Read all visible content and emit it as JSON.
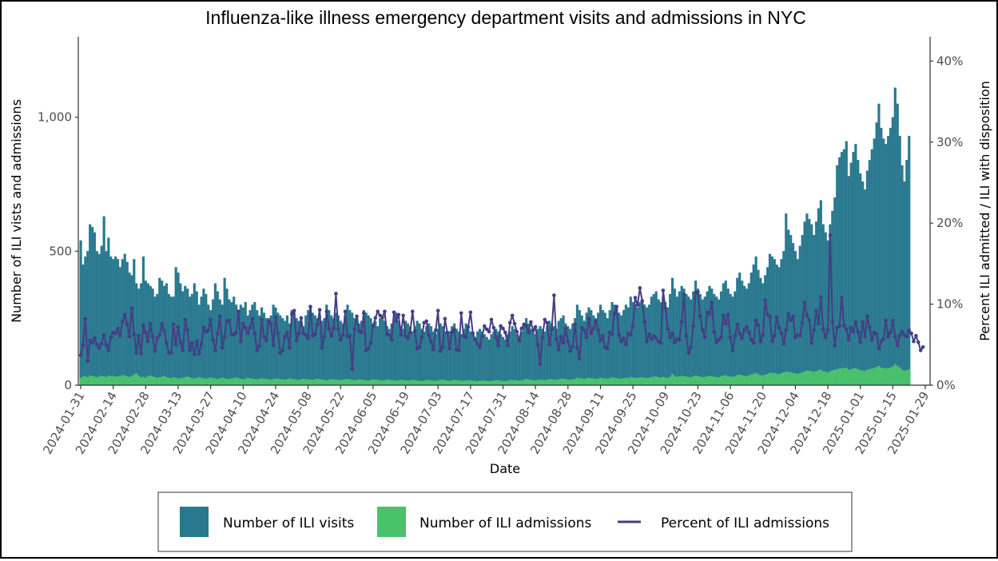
{
  "chart_data": {
    "type": "bar+line",
    "title": "Influenza-like illness emergency department visits and admissions in NYC",
    "xlabel": "Date",
    "ylabel": "Number of ILI vists and admissions",
    "ylabel_right": "Percent ILI admitted / ILI with disposition",
    "start_date": "2024-01-31",
    "end_date": "2025-01-29",
    "x_tick_labels": [
      "2024-01-31",
      "2024-02-14",
      "2024-02-28",
      "2024-03-13",
      "2024-03-27",
      "2024-04-10",
      "2024-04-24",
      "2024-05-08",
      "2024-05-22",
      "2024-06-05",
      "2024-06-19",
      "2024-07-03",
      "2024-07-17",
      "2024-07-31",
      "2024-08-14",
      "2024-08-28",
      "2024-09-11",
      "2024-09-25",
      "2024-10-09",
      "2024-10-23",
      "2024-11-06",
      "2024-11-20",
      "2024-12-04",
      "2024-12-18",
      "2025-01-01",
      "2025-01-15",
      "2025-01-29"
    ],
    "y_ticks": [
      0,
      500,
      1000
    ],
    "y_tick_labels": [
      "0",
      "500",
      "1,000"
    ],
    "ylim": [
      0,
      1300
    ],
    "y2_ticks": [
      0,
      10,
      20,
      30,
      40
    ],
    "y2_tick_labels": [
      "0%",
      "10%",
      "20%",
      "30%",
      "40%"
    ],
    "y2lim": [
      0,
      43
    ],
    "grid": false,
    "legend_position": "bottom",
    "series": [
      {
        "name": "Number of ILI visits",
        "kind": "bar",
        "axis": "left",
        "color": "#2a788e",
        "values": [
          540,
          450,
          480,
          500,
          600,
          590,
          570,
          500,
          490,
          520,
          630,
          500,
          550,
          480,
          470,
          480,
          470,
          440,
          470,
          490,
          460,
          420,
          410,
          470,
          380,
          360,
          380,
          480,
          390,
          380,
          370,
          360,
          330,
          340,
          400,
          390,
          370,
          380,
          340,
          330,
          330,
          440,
          420,
          380,
          350,
          370,
          360,
          330,
          340,
          380,
          350,
          300,
          330,
          360,
          340,
          300,
          280,
          320,
          380,
          350,
          320,
          300,
          400,
          360,
          320,
          310,
          330,
          300,
          270,
          300,
          290,
          310,
          260,
          280,
          300,
          310,
          280,
          260,
          290,
          270,
          250,
          250,
          260,
          300,
          290,
          270,
          260,
          250,
          240,
          260,
          230,
          280,
          270,
          250,
          240,
          230,
          220,
          260,
          280,
          290,
          270,
          260,
          250,
          260,
          240,
          250,
          300,
          280,
          260,
          250,
          270,
          260,
          240,
          230,
          260,
          300,
          280,
          270,
          250,
          260,
          230,
          240,
          280,
          270,
          260,
          250,
          230,
          240,
          220,
          250,
          260,
          240,
          220,
          210,
          230,
          250,
          270,
          240,
          220,
          210,
          240,
          230,
          220,
          200,
          220,
          240,
          230,
          210,
          200,
          220,
          230,
          220,
          200,
          190,
          210,
          230,
          220,
          200,
          190,
          200,
          220,
          230,
          210,
          200,
          190,
          210,
          230,
          210,
          200,
          190,
          180,
          200,
          210,
          200,
          190,
          180,
          170,
          190,
          200,
          210,
          200,
          190,
          180,
          170,
          190,
          200,
          220,
          210,
          190,
          180,
          200,
          230,
          250,
          230,
          210,
          200,
          190,
          210,
          220,
          210,
          200,
          220,
          240,
          230,
          220,
          210,
          240,
          250,
          260,
          230,
          220,
          210,
          230,
          250,
          300,
          280,
          260,
          240,
          270,
          290,
          280,
          260,
          250,
          270,
          300,
          280,
          270,
          250,
          280,
          310,
          300,
          290,
          270,
          260,
          280,
          300,
          290,
          330,
          310,
          300,
          290,
          310,
          320,
          300,
          290,
          300,
          330,
          340,
          350,
          320,
          310,
          330,
          310,
          290,
          340,
          400,
          360,
          330,
          350,
          370,
          360,
          340,
          330,
          320,
          350,
          390,
          360,
          340,
          320,
          330,
          350,
          370,
          360,
          340,
          330,
          320,
          350,
          380,
          390,
          360,
          340,
          330,
          350,
          400,
          420,
          390,
          370,
          360,
          380,
          420,
          450,
          480,
          430,
          400,
          380,
          410,
          440,
          490,
          480,
          470,
          450,
          440,
          470,
          500,
          640,
          580,
          560,
          530,
          500,
          470,
          520,
          560,
          610,
          640,
          620,
          600,
          560,
          610,
          660,
          690,
          600,
          570,
          540,
          600,
          650,
          700,
          820,
          850,
          870,
          880,
          910,
          780,
          830,
          870,
          900,
          840,
          790,
          760,
          730,
          800,
          840,
          880,
          920,
          980,
          1050,
          960,
          920,
          900,
          930,
          960,
          1000,
          1110,
          1050,
          930,
          820,
          760,
          840,
          930
        ]
      },
      {
        "name": "Number of ILI admissions",
        "kind": "bar",
        "axis": "left",
        "color": "#4ac16d",
        "values": [
          28,
          32,
          34,
          30,
          36,
          35,
          32,
          30,
          34,
          35,
          33,
          31,
          36,
          34,
          35,
          32,
          33,
          34,
          38,
          36,
          33,
          31,
          35,
          40,
          45,
          36,
          30,
          32,
          28,
          35,
          36,
          33,
          30,
          28,
          30,
          32,
          34,
          30,
          28,
          26,
          30,
          28,
          25,
          26,
          28,
          30,
          32,
          29,
          26,
          25,
          27,
          30,
          28,
          26,
          24,
          26,
          29,
          27,
          25,
          23,
          26,
          28,
          26,
          24,
          23,
          25,
          27,
          29,
          26,
          24,
          22,
          25,
          28,
          26,
          25,
          23,
          22,
          24,
          26,
          25,
          24,
          22,
          21,
          23,
          25,
          24,
          23,
          22,
          21,
          23,
          25,
          24,
          22,
          21,
          20,
          22,
          24,
          23,
          22,
          21,
          20,
          22,
          24,
          23,
          22,
          20,
          19,
          21,
          23,
          22,
          21,
          20,
          19,
          21,
          23,
          24,
          22,
          20,
          19,
          21,
          22,
          21,
          20,
          19,
          18,
          20,
          22,
          21,
          20,
          19,
          18,
          19,
          21,
          20,
          19,
          18,
          17,
          19,
          20,
          19,
          18,
          17,
          18,
          20,
          19,
          18,
          17,
          16,
          18,
          19,
          20,
          18,
          17,
          16,
          18,
          20,
          21,
          19,
          18,
          17,
          18,
          20,
          19,
          18,
          17,
          16,
          18,
          19,
          18,
          17,
          16,
          15,
          17,
          18,
          17,
          16,
          15,
          16,
          18,
          19,
          18,
          17,
          16,
          15,
          17,
          19,
          20,
          19,
          18,
          17,
          18,
          21,
          24,
          22,
          20,
          19,
          18,
          20,
          21,
          20,
          19,
          21,
          23,
          22,
          21,
          20,
          22,
          24,
          25,
          22,
          21,
          20,
          22,
          24,
          28,
          26,
          25,
          23,
          26,
          27,
          26,
          25,
          24,
          25,
          28,
          26,
          25,
          24,
          26,
          29,
          28,
          27,
          25,
          24,
          26,
          28,
          27,
          31,
          29,
          28,
          27,
          29,
          30,
          28,
          27,
          28,
          31,
          32,
          33,
          30,
          29,
          31,
          29,
          27,
          32,
          42,
          34,
          31,
          33,
          35,
          34,
          32,
          31,
          30,
          33,
          36,
          34,
          32,
          30,
          31,
          33,
          35,
          34,
          32,
          31,
          30,
          33,
          36,
          37,
          34,
          32,
          31,
          33,
          38,
          40,
          37,
          35,
          34,
          36,
          40,
          43,
          46,
          41,
          38,
          36,
          39,
          42,
          47,
          46,
          45,
          43,
          42,
          45,
          48,
          52,
          50,
          48,
          46,
          44,
          42,
          45,
          48,
          52,
          55,
          54,
          52,
          50,
          53,
          56,
          58,
          52,
          50,
          48,
          52,
          56,
          58,
          60,
          62,
          63,
          64,
          65,
          58,
          60,
          62,
          64,
          60,
          57,
          55,
          53,
          58,
          60,
          62,
          64,
          68,
          72,
          66,
          64,
          63,
          64,
          66,
          70,
          78,
          72,
          66,
          58,
          54,
          56,
          60
        ]
      },
      {
        "name": "Percent of ILI admissions",
        "kind": "line",
        "axis": "right",
        "color": "#433e85",
        "values": [
          3.7,
          5.0,
          8.2,
          3.0,
          5.5,
          5.2,
          5.8,
          5.0,
          4.6,
          5.1,
          6.2,
          5.0,
          4.3,
          5.9,
          6.5,
          6.4,
          7.0,
          6.1,
          7.8,
          8.7,
          7.5,
          6.0,
          9.5,
          6.3,
          4.0,
          6.1,
          3.9,
          7.4,
          6.5,
          5.4,
          7.6,
          6.0,
          4.2,
          5.8,
          6.2,
          7.6,
          6.7,
          5.2,
          4.0,
          4.0,
          7.5,
          5.0,
          7.2,
          5.3,
          4.3,
          8.1,
          6.8,
          4.3,
          5.2,
          3.8,
          5.4,
          3.9,
          5.1,
          7.1,
          6.6,
          6.8,
          8.1,
          5.6,
          4.3,
          6.4,
          8.5,
          4.6,
          6.0,
          7.9,
          8.0,
          6.3,
          6.2,
          6.5,
          9.1,
          5.4,
          7.6,
          7.1,
          6.4,
          7.1,
          8.2,
          6.4,
          4.3,
          4.8,
          8.1,
          6.0,
          5.5,
          7.9,
          7.6,
          4.9,
          8.4,
          6.4,
          4.0,
          4.3,
          6.0,
          6.5,
          4.6,
          8.8,
          9.2,
          5.5,
          6.4,
          8.3,
          6.4,
          6.2,
          5.8,
          9.7,
          6.1,
          6.3,
          7.5,
          9.3,
          4.6,
          6.0,
          9.1,
          7.0,
          6.1,
          7.0,
          11.3,
          6.9,
          5.6,
          6.2,
          9.1,
          6.0,
          6.1,
          2.0,
          6.9,
          8.5,
          6.7,
          6.5,
          8.9,
          4.3,
          4.5,
          5.2,
          7.3,
          8.3,
          9.1,
          8.6,
          8.4,
          9.1,
          6.3,
          6.2,
          5.6,
          9.0,
          7.9,
          8.7,
          6.2,
          8.6,
          6.1,
          5.8,
          6.5,
          9.1,
          6.7,
          4.5,
          4.7,
          5.9,
          7.7,
          7.9,
          6.2,
          5.4,
          4.4,
          6.8,
          9.2,
          4.2,
          4.7,
          8.2,
          6.5,
          4.5,
          6.6,
          6.9,
          4.4,
          4.3,
          8.9,
          6.1,
          5.9,
          7.2,
          9.0,
          6.4,
          5.6,
          5.1,
          4.7,
          6.0,
          7.3,
          6.9,
          6.6,
          8.1,
          7.1,
          5.9,
          4.9,
          7.3,
          7.0,
          6.5,
          4.9,
          7.7,
          8.6,
          7.6,
          6.6,
          5.5,
          7.0,
          7.5,
          7.3,
          6.5,
          7.8,
          6.8,
          7.2,
          5.0,
          2.6,
          5.9,
          8.1,
          7.7,
          5.0,
          6.9,
          11.1,
          5.7,
          4.4,
          6.0,
          5.2,
          7.0,
          5.4,
          4.2,
          4.8,
          7.5,
          4.6,
          3.3,
          7.1,
          6.8,
          5.9,
          8.2,
          6.4,
          7.0,
          7.9,
          6.8,
          5.5,
          6.1,
          4.7,
          4.5,
          6.5,
          6.3,
          8.8,
          9.7,
          6.2,
          5.4,
          5.8,
          5.0,
          6.4,
          6.2,
          7.3,
          10.8,
          9.9,
          12.0,
          10.4,
          7.8,
          5.4,
          6.3,
          5.7,
          6.1,
          5.8,
          5.4,
          5.2,
          11.7,
          9.5,
          7.0,
          5.9,
          6.4,
          5.3,
          5.7,
          5.6,
          7.8,
          11.2,
          6.1,
          4.0,
          4.7,
          7.3,
          11.4,
          11.5,
          8.5,
          6.8,
          5.9,
          9.0,
          8.8,
          10.2,
          6.6,
          5.3,
          5.6,
          5.9,
          8.6,
          7.6,
          8.7,
          5.9,
          4.3,
          6.1,
          7.5,
          6.4,
          5.8,
          6.8,
          7.2,
          6.5,
          5.6,
          5.2,
          8.0,
          7.4,
          5.4,
          6.2,
          10.5,
          8.7,
          8.5,
          5.4,
          6.1,
          8.4,
          7.1,
          6.4,
          5.1,
          6.8,
          8.8,
          8.0,
          8.5,
          5.9,
          6.2,
          6.1,
          7.7,
          10.2,
          8.6,
          8.0,
          5.2,
          6.8,
          9.2,
          7.6,
          10.9,
          6.9,
          5.9,
          6.8,
          18.5,
          7.8,
          4.9,
          7.1,
          7.3,
          10.8,
          7.4,
          6.9,
          5.6,
          7.1,
          6.6,
          7.8,
          6.6,
          5.3,
          7.8,
          6.0,
          8.5,
          7.1,
          5.6,
          6.5,
          6.3,
          4.5,
          5.4,
          5.7,
          8.0,
          6.0,
          6.5,
          8.0,
          6.0,
          4.9,
          6.1,
          6.6,
          6.2,
          6.0,
          6.8,
          6.4,
          5.4,
          6.1,
          5.3,
          4.3,
          4.7
        ]
      }
    ]
  },
  "legend": {
    "items": [
      {
        "label": "Number of ILI visits",
        "color": "#2a788e",
        "shape": "box"
      },
      {
        "label": "Number of ILI admissions",
        "color": "#4ac16d",
        "shape": "box"
      },
      {
        "label": "Percent of ILI admissions",
        "color": "#433e85",
        "shape": "line"
      }
    ]
  }
}
